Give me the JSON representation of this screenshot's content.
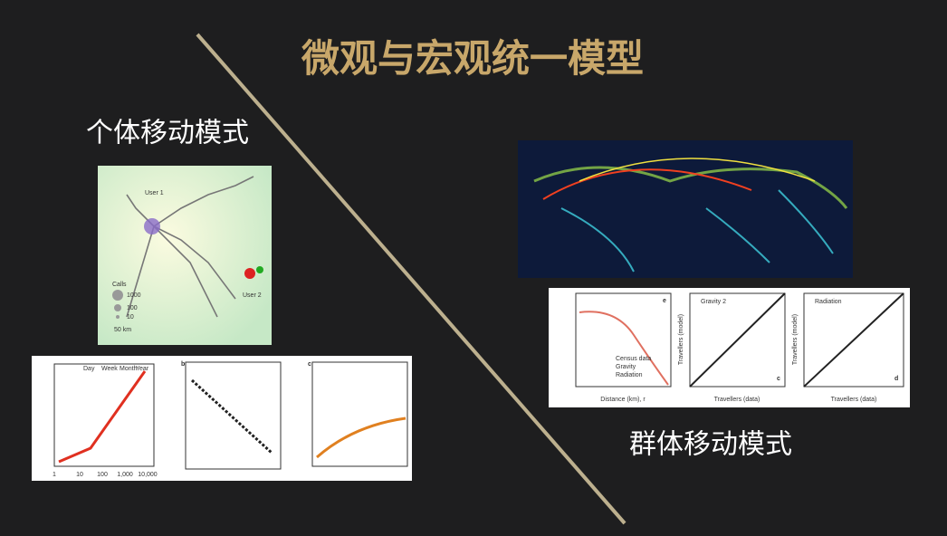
{
  "slide": {
    "title": "微观与宏观统一模型",
    "left_label": "个体移动模式",
    "right_label": "群体移动模式",
    "user_figure": {
      "user1": "User 1",
      "user2": "User 2",
      "calls": "Calls",
      "sizes": [
        "1000",
        "100",
        "10"
      ],
      "scale": "50 km"
    },
    "scaling_figure": {
      "periods": [
        "Day",
        "Week",
        "Month",
        "Year"
      ],
      "panels": [
        "b",
        "c"
      ],
      "x_ticks": [
        "1",
        "10",
        "100",
        "1,000",
        "10,000"
      ]
    },
    "flow_figure": {
      "legend": [
        "Census data",
        "Gravity",
        "Radiation"
      ],
      "x_label": "Distance (km), r",
      "model_label": "Travellers (model)",
      "data_label": "Travellers (data)",
      "gravity_title": "Gravity 2",
      "radiation_title": "Radiation",
      "panels": [
        "e",
        "c",
        "d"
      ]
    }
  }
}
